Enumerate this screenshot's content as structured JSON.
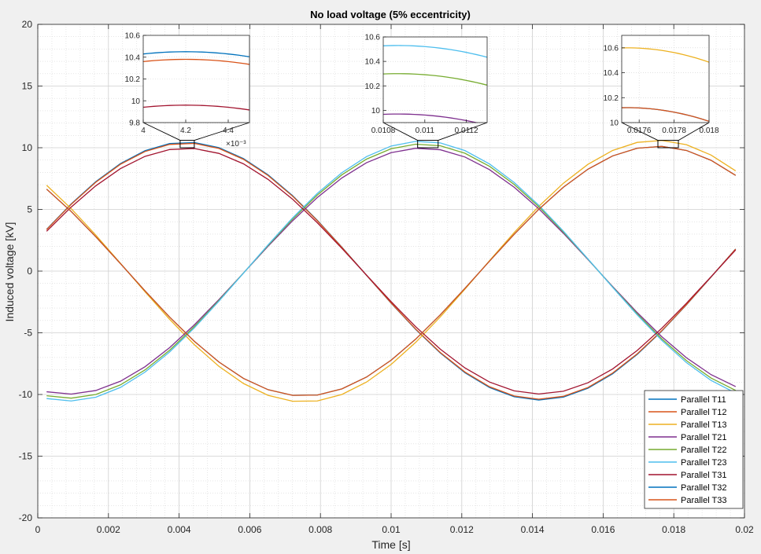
{
  "chart_data": {
    "type": "line",
    "title": "No load voltage (5% eccentricity)",
    "xlabel": "Time [s]",
    "ylabel": "Induced voltage [kV]",
    "xlim": [
      0,
      0.02
    ],
    "ylim": [
      -20,
      20
    ],
    "grid": "major and minor",
    "legend_location": "bottom-right",
    "xticks": [
      0,
      0.002,
      0.004,
      0.006,
      0.008,
      0.01,
      0.012,
      0.014,
      0.016,
      0.018,
      0.02
    ],
    "xtick_labels": [
      "0",
      "0.002",
      "0.004",
      "0.006",
      "0.008",
      "0.01",
      "0.012",
      "0.014",
      "0.016",
      "0.018",
      "0.02"
    ],
    "yticks": [
      -20,
      -15,
      -10,
      -5,
      0,
      5,
      10,
      15,
      20
    ],
    "ytick_labels": [
      "-20",
      "-15",
      "-10",
      "-5",
      "0",
      "5",
      "10",
      "15",
      "20"
    ],
    "frequency_hz": 50,
    "x_start": 0.00025,
    "x_end": 0.01975,
    "series": [
      {
        "name": "Parallel T11",
        "color": "#0072bd",
        "amplitude": 10.45,
        "peak_time": 0.0042
      },
      {
        "name": "Parallel T12",
        "color": "#d95319",
        "amplitude": 10.38,
        "peak_time": 0.0042
      },
      {
        "name": "Parallel T13",
        "color": "#edb120",
        "amplitude": 10.6,
        "peak_time": 0.01753
      },
      {
        "name": "Parallel T21",
        "color": "#7e2f8e",
        "amplitude": 9.97,
        "peak_time": 0.01087
      },
      {
        "name": "Parallel T22",
        "color": "#77ac30",
        "amplitude": 10.3,
        "peak_time": 0.01087
      },
      {
        "name": "Parallel T23",
        "color": "#4dbeee",
        "amplitude": 10.53,
        "peak_time": 0.01087
      },
      {
        "name": "Parallel T31",
        "color": "#a2142f",
        "amplitude": 9.96,
        "peak_time": 0.0042
      },
      {
        "name": "Parallel T32",
        "color": "#0072bd",
        "amplitude": 10.12,
        "peak_time": 0.01753
      },
      {
        "name": "Parallel T33",
        "color": "#d95319",
        "amplitude": 10.12,
        "peak_time": 0.01753
      }
    ],
    "insets": [
      {
        "name": "inset-1",
        "xlim": [
          0.004,
          0.0045
        ],
        "ylim": [
          9.8,
          10.6
        ],
        "xticks": [
          0.004,
          0.0042,
          0.0044
        ],
        "xtick_labels": [
          "4",
          "4.2",
          "4.4"
        ],
        "yticks": [
          9.8,
          10,
          10.2,
          10.4,
          10.6
        ],
        "ytick_labels": [
          "9.8",
          "10",
          "10.2",
          "10.4",
          "10.6"
        ],
        "exponent_label": "×10⁻³",
        "zoom_box": {
          "xlim": [
            0.00403,
            0.00443
          ],
          "ylim": [
            10.0,
            10.6
          ]
        },
        "series_shown": [
          "Parallel T11",
          "Parallel T12",
          "Parallel T31"
        ]
      },
      {
        "name": "inset-2",
        "xlim": [
          0.0108,
          0.0113
        ],
        "ylim": [
          9.9,
          10.6
        ],
        "xticks": [
          0.0108,
          0.011,
          0.0112
        ],
        "xtick_labels": [
          "0.0108",
          "0.011",
          "0.0112"
        ],
        "yticks": [
          10,
          10.2,
          10.4,
          10.6
        ],
        "ytick_labels": [
          "10",
          "10.2",
          "10.4",
          "10.6"
        ],
        "zoom_box": {
          "xlim": [
            0.01075,
            0.01133
          ],
          "ylim": [
            10.0,
            10.6
          ]
        },
        "series_shown": [
          "Parallel T21",
          "Parallel T22",
          "Parallel T23"
        ]
      },
      {
        "name": "inset-3",
        "xlim": [
          0.0175,
          0.018
        ],
        "ylim": [
          10,
          10.7
        ],
        "xticks": [
          0.0176,
          0.0178,
          0.018
        ],
        "xtick_labels": [
          "0.0176",
          "0.0178",
          "0.018"
        ],
        "yticks": [
          10,
          10.2,
          10.4,
          10.6
        ],
        "ytick_labels": [
          "10",
          "10.2",
          "10.4",
          "10.6"
        ],
        "zoom_box": {
          "xlim": [
            0.01755,
            0.01813
          ],
          "ylim": [
            10.0,
            10.6
          ]
        },
        "series_shown": [
          "Parallel T13",
          "Parallel T32",
          "Parallel T33"
        ]
      }
    ]
  }
}
